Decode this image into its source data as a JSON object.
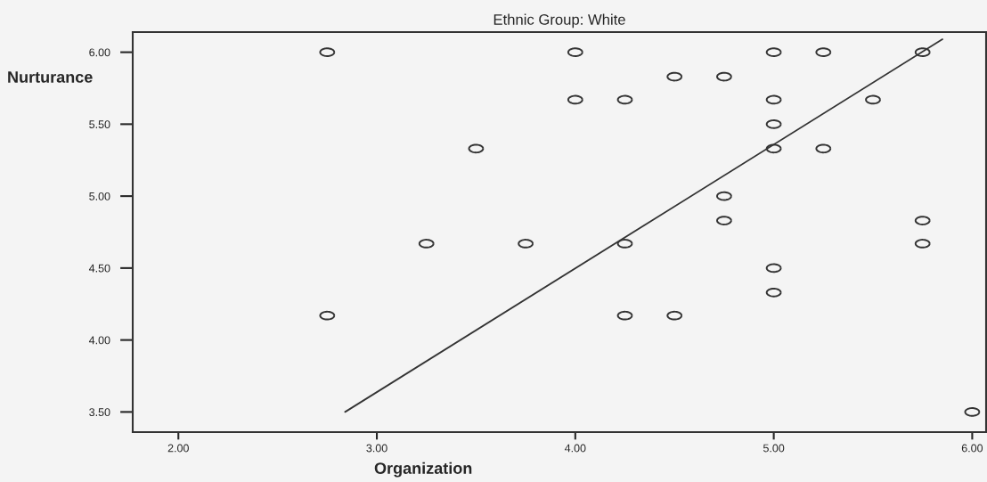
{
  "chart_data": {
    "type": "scatter",
    "title": "Ethnic Group: White",
    "xlabel": "Organization",
    "ylabel": "Nurturance",
    "xlim": [
      1.77,
      6.07
    ],
    "ylim": [
      3.36,
      6.14
    ],
    "xticks": [
      {
        "value": 2,
        "label": "2.00"
      },
      {
        "value": 3,
        "label": "3.00"
      },
      {
        "value": 4,
        "label": "4.00"
      },
      {
        "value": 5,
        "label": "5.00"
      },
      {
        "value": 6,
        "label": "6.00"
      }
    ],
    "yticks": [
      {
        "value": 3.5,
        "label": "3.50"
      },
      {
        "value": 4,
        "label": "4.00"
      },
      {
        "value": 4.5,
        "label": "4.50"
      },
      {
        "value": 5,
        "label": "5.00"
      },
      {
        "value": 5.5,
        "label": "5.50"
      },
      {
        "value": 6,
        "label": "6.00"
      }
    ],
    "grid": false,
    "legend": false,
    "marker": "circle",
    "series": [
      {
        "color": "#333333",
        "x": [
          2.75,
          4.0,
          5.0,
          5.25,
          5.75,
          4.5,
          4.75,
          4.0,
          4.25,
          5.0,
          5.5,
          5.0,
          3.5,
          5.0,
          5.25,
          4.75,
          4.75,
          5.75,
          3.25,
          3.75,
          4.25,
          5.75,
          5.0,
          5.0,
          2.75,
          4.25,
          4.5,
          6.0
        ],
        "values": [
          6.0,
          6.0,
          6.0,
          6.0,
          6.0,
          5.83,
          5.83,
          5.67,
          5.67,
          5.67,
          5.67,
          5.5,
          5.33,
          5.33,
          5.33,
          5.0,
          4.83,
          4.83,
          4.67,
          4.67,
          4.67,
          4.67,
          4.5,
          4.33,
          4.17,
          4.17,
          4.17,
          3.5
        ]
      },
      {
        "type": "line",
        "color": "#333333",
        "x": [
          2.84,
          5.85
        ],
        "values": [
          3.5,
          6.09
        ],
        "marker": "none",
        "line_style": "solid"
      }
    ]
  }
}
